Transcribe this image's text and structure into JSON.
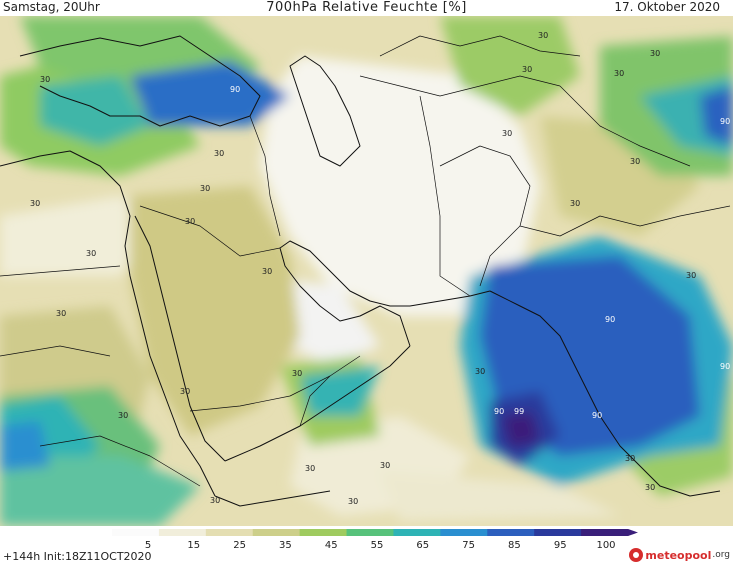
{
  "header": {
    "left": "Samstag, 20Uhr",
    "title": "700hPa Relative Feuchte [%]",
    "right": "17. Oktober 2020"
  },
  "legend": {
    "ticks": [
      "5",
      "15",
      "25",
      "35",
      "45",
      "55",
      "65",
      "75",
      "85",
      "95",
      "100"
    ],
    "colors": [
      "#fbfbfb",
      "#f1eedb",
      "#e4deb2",
      "#cdcf8a",
      "#9fcb5f",
      "#57c27b",
      "#2eb3b5",
      "#2a8fd0",
      "#2c5fbe",
      "#2a3a9c",
      "#3a1f7a"
    ]
  },
  "contour_labels": [
    "30",
    "90",
    "99"
  ],
  "footer": {
    "run": "+144h Init:18Z11OCT2020",
    "logo_main": "meteopool",
    "logo_tld": ".org"
  }
}
